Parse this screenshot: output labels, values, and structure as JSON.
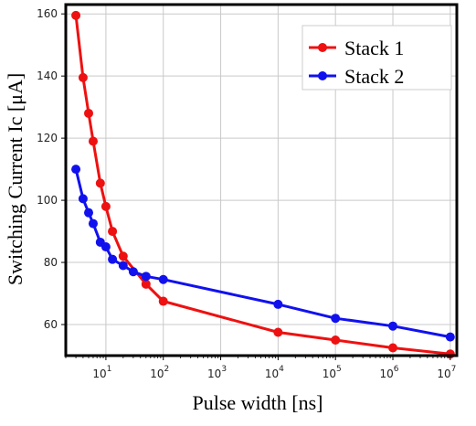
{
  "chart_data": {
    "type": "line",
    "xscale": "log",
    "xlabel": "Pulse width [ns]",
    "ylabel": "Switching Current  Ic [μA]",
    "xlim": [
      2,
      13000000
    ],
    "ylim": [
      50,
      163
    ],
    "grid": true,
    "legend_position": "top-right",
    "x_ticks": [
      {
        "value": 10,
        "base": "10",
        "exp": "1"
      },
      {
        "value": 100,
        "base": "10",
        "exp": "2"
      },
      {
        "value": 1000,
        "base": "10",
        "exp": "3"
      },
      {
        "value": 10000,
        "base": "10",
        "exp": "4"
      },
      {
        "value": 100000,
        "base": "10",
        "exp": "5"
      },
      {
        "value": 1000000,
        "base": "10",
        "exp": "6"
      },
      {
        "value": 10000000,
        "base": "10",
        "exp": "7"
      }
    ],
    "y_ticks": [
      60,
      80,
      100,
      120,
      140,
      160
    ],
    "series": [
      {
        "name": "Stack 1",
        "color": "#ee1111",
        "x": [
          3,
          4,
          5,
          6,
          8,
          10,
          13,
          20,
          50,
          100,
          10000,
          100000,
          1000000,
          10000000
        ],
        "y": [
          159.5,
          139.5,
          128,
          119,
          105.5,
          98,
          90,
          82,
          73,
          67.5,
          57.5,
          55,
          52.5,
          50.5
        ]
      },
      {
        "name": "Stack 2",
        "color": "#1111ee",
        "x": [
          3,
          4,
          5,
          6,
          8,
          10,
          13,
          20,
          30,
          50,
          100,
          10000,
          100000,
          1000000,
          10000000
        ],
        "y": [
          110,
          100.5,
          96,
          92.5,
          86.5,
          85,
          81,
          79,
          77,
          75.5,
          74.5,
          66.5,
          62,
          59.5,
          56
        ]
      }
    ]
  }
}
